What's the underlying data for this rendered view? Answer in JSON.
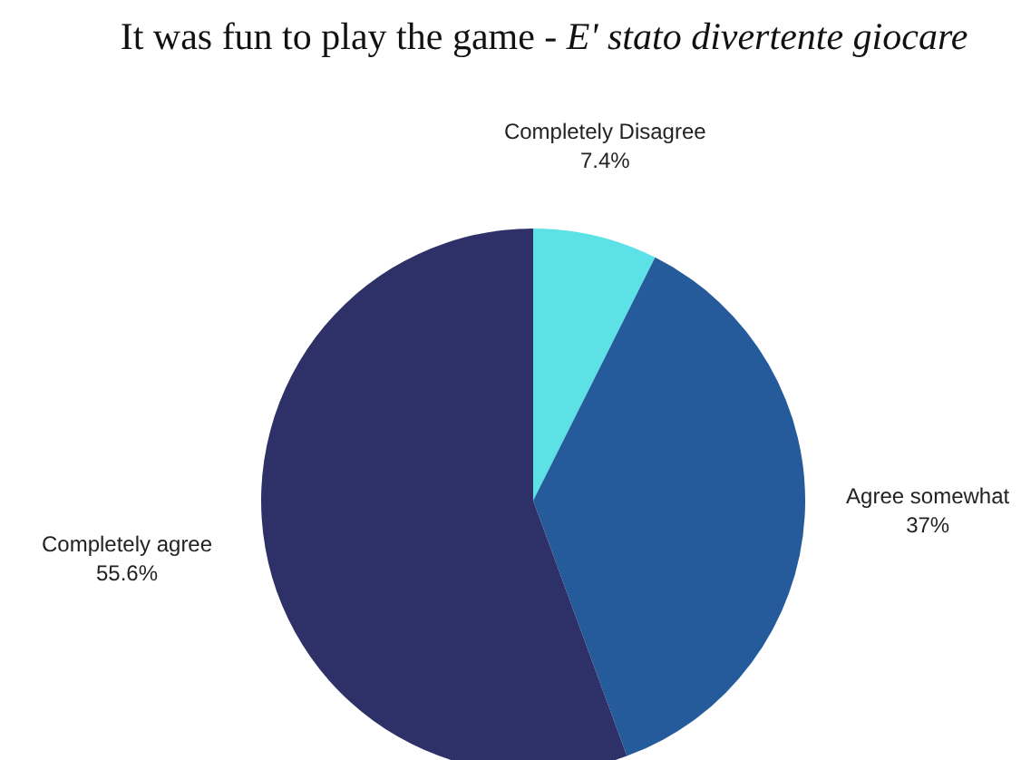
{
  "chart_data": {
    "type": "pie",
    "title": "It was fun to play the game - E' stato divertente giocare",
    "categories": [
      "Completely Disagree",
      "Agree somewhat",
      "Completely agree"
    ],
    "values": [
      7.4,
      37,
      55.6
    ],
    "value_labels": [
      "7.4%",
      "37%",
      "55.6%"
    ],
    "colors": [
      "#5ce1e6",
      "#255b9a",
      "#2e3068"
    ]
  }
}
